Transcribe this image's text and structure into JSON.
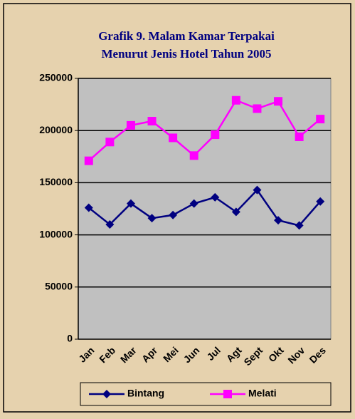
{
  "chart_data": {
    "type": "line",
    "title": [
      "Grafik 9. Malam Kamar Terpakai",
      "Menurut Jenis Hotel Tahun 2005"
    ],
    "categories": [
      "Jan",
      "Feb",
      "Mar",
      "Apr",
      "Mei",
      "Jun",
      "Jul",
      "Agt",
      "Sept",
      "Okt",
      "Nov",
      "Des"
    ],
    "series": [
      {
        "name": "Bintang",
        "color": "#000080",
        "marker": "diamond",
        "values": [
          126000,
          110000,
          130000,
          116000,
          119000,
          130000,
          136000,
          122000,
          143000,
          114000,
          109000,
          132000
        ]
      },
      {
        "name": "Melati",
        "color": "#ff00ff",
        "marker": "square",
        "values": [
          171000,
          189000,
          205000,
          209000,
          193000,
          176000,
          196000,
          229000,
          221000,
          228000,
          194000,
          211000
        ]
      }
    ],
    "ylim": [
      0,
      250000
    ],
    "yticks": [
      0,
      50000,
      100000,
      150000,
      200000,
      250000
    ],
    "grid": true,
    "legend": "bottom"
  }
}
